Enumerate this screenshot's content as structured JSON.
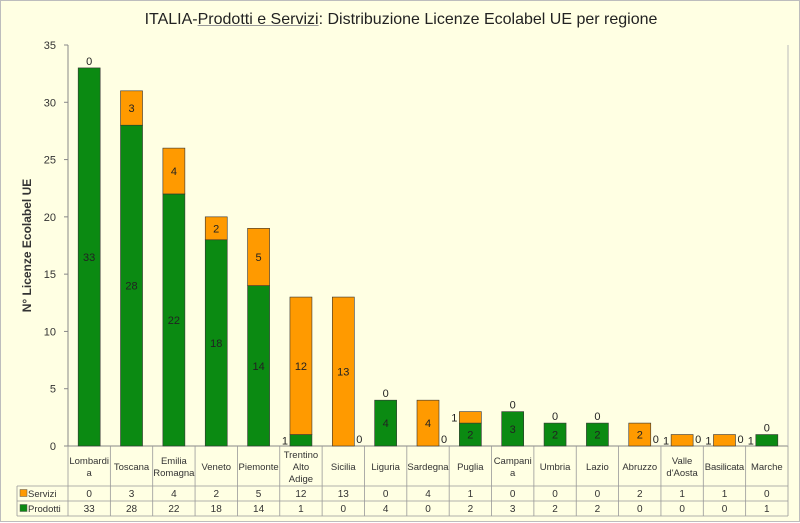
{
  "chart_data": {
    "type": "bar",
    "stacked": true,
    "title_parts": {
      "prefix": "ITALIA-",
      "underlined": "Prodotti e Servizi",
      "suffix": ": Distribuzione  Licenze Ecolabel UE  per regione"
    },
    "xlabel": "",
    "ylabel": "N° Licenze  Ecolabel UE",
    "ylim": [
      0,
      35
    ],
    "yticks": [
      0,
      5,
      10,
      15,
      20,
      25,
      30,
      35
    ],
    "grid": false,
    "legend": "data-table-left",
    "categories": [
      "Lombardia",
      "Toscana",
      "Emilia Romagna",
      "Veneto",
      "Piemonte",
      "Trentino Alto Adige",
      "Sicilia",
      "Liguria",
      "Sardegna",
      "Puglia",
      "Campania",
      "Umbria",
      "Lazio",
      "Abruzzo",
      "Valle d'Aosta",
      "Basilicata",
      "Marche"
    ],
    "category_lines": [
      [
        "Lombardi",
        "a"
      ],
      [
        "Toscana"
      ],
      [
        "Emilia",
        "Romagna"
      ],
      [
        "Veneto"
      ],
      [
        "Piemonte"
      ],
      [
        "Trentino",
        "Alto",
        "Adige"
      ],
      [
        "Sicilia"
      ],
      [
        "Liguria"
      ],
      [
        "Sardegna"
      ],
      [
        "Puglia"
      ],
      [
        "Campani",
        "a"
      ],
      [
        "Umbria"
      ],
      [
        "Lazio"
      ],
      [
        "Abruzzo"
      ],
      [
        "Valle",
        "d'Aosta"
      ],
      [
        "Basilicata"
      ],
      [
        "Marche"
      ]
    ],
    "series": [
      {
        "name": "Prodotti",
        "color": "#0b8a12",
        "values": [
          33,
          28,
          22,
          18,
          14,
          1,
          0,
          4,
          0,
          2,
          3,
          2,
          2,
          0,
          0,
          0,
          1
        ]
      },
      {
        "name": "Servizi",
        "color": "#ff9a00",
        "values": [
          0,
          3,
          4,
          2,
          5,
          12,
          13,
          0,
          4,
          1,
          0,
          0,
          0,
          2,
          1,
          1,
          0
        ]
      }
    ]
  }
}
